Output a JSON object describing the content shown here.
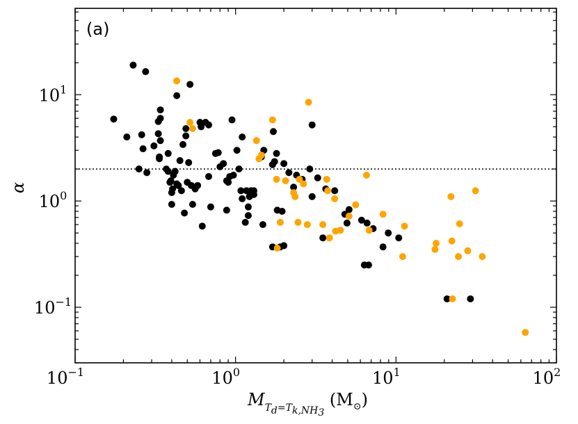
{
  "chart_data": {
    "type": "scatter",
    "title": "",
    "panel_label": "(a)",
    "xscale": "log",
    "yscale": "log",
    "xlim": [
      0.1,
      100
    ],
    "ylim": [
      0.03,
      65
    ],
    "x_ticks": [
      {
        "base": "10",
        "exp": "−1",
        "value": 0.1
      },
      {
        "base": "10",
        "exp": "0",
        "value": 1
      },
      {
        "base": "10",
        "exp": "1",
        "value": 10
      },
      {
        "base": "10",
        "exp": "2",
        "value": 100
      }
    ],
    "y_ticks": [
      {
        "base": "10",
        "exp": "−1",
        "value": 0.1
      },
      {
        "base": "10",
        "exp": "0",
        "value": 1
      },
      {
        "base": "10",
        "exp": "1",
        "value": 10
      }
    ],
    "xlabel": {
      "symbol": "M",
      "sub_lhs": "T",
      "sub_lhs_sub": "d",
      "sub_eq": "=",
      "sub_rhs": "T",
      "sub_rhs_sub": "k,NH",
      "sub_rhs_sub2": "3",
      "unit": "(M",
      "unit_sub": "⊙",
      "unit_close": ")"
    },
    "ylabel": "α",
    "reference_line": {
      "y": 2.0,
      "style": "dotted",
      "color": "#000000"
    },
    "series": [
      {
        "name": "black",
        "color": "#000000",
        "points": [
          [
            0.174,
            5.9
          ],
          [
            0.21,
            4.0
          ],
          [
            0.23,
            19.0
          ],
          [
            0.25,
            2.0
          ],
          [
            0.26,
            4.2
          ],
          [
            0.265,
            3.1
          ],
          [
            0.275,
            16.5
          ],
          [
            0.28,
            1.85
          ],
          [
            0.31,
            3.3
          ],
          [
            0.33,
            4.3
          ],
          [
            0.33,
            5.6
          ],
          [
            0.335,
            2.5
          ],
          [
            0.335,
            2.6
          ],
          [
            0.34,
            7.2
          ],
          [
            0.34,
            6.0
          ],
          [
            0.34,
            3.7
          ],
          [
            0.37,
            2.0
          ],
          [
            0.38,
            2.8
          ],
          [
            0.38,
            1.9
          ],
          [
            0.39,
            1.5
          ],
          [
            0.395,
            1.55
          ],
          [
            0.4,
            0.93
          ],
          [
            0.4,
            1.2
          ],
          [
            0.405,
            1.3
          ],
          [
            0.41,
            1.75
          ],
          [
            0.42,
            1.9
          ],
          [
            0.43,
            1.45
          ],
          [
            0.43,
            9.8
          ],
          [
            0.44,
            1.4
          ],
          [
            0.45,
            2.4
          ],
          [
            0.46,
            1.25
          ],
          [
            0.47,
            3.4
          ],
          [
            0.48,
            0.77
          ],
          [
            0.49,
            4.8
          ],
          [
            0.49,
            4.1
          ],
          [
            0.5,
            1.5
          ],
          [
            0.51,
            2.3
          ],
          [
            0.52,
            12.5
          ],
          [
            0.53,
            1.4
          ],
          [
            0.54,
            0.93
          ],
          [
            0.56,
            1.3
          ],
          [
            0.58,
            1.4
          ],
          [
            0.6,
            5.5
          ],
          [
            0.61,
            5.0
          ],
          [
            0.62,
            0.58
          ],
          [
            0.65,
            5.5
          ],
          [
            0.68,
            5.2
          ],
          [
            0.68,
            1.7
          ],
          [
            0.7,
            0.88
          ],
          [
            0.75,
            2.8
          ],
          [
            0.78,
            2.85
          ],
          [
            0.8,
            2.1
          ],
          [
            0.84,
            2.25
          ],
          [
            0.88,
            0.82
          ],
          [
            0.88,
            1.55
          ],
          [
            0.9,
            1.5
          ],
          [
            0.92,
            1.7
          ],
          [
            0.95,
            5.8
          ],
          [
            0.97,
            1.75
          ],
          [
            1.02,
            3.0
          ],
          [
            1.05,
            2.0
          ],
          [
            1.08,
            1.25
          ],
          [
            1.1,
            4.0
          ],
          [
            1.1,
            1.05
          ],
          [
            1.15,
            0.63
          ],
          [
            1.17,
            1.25
          ],
          [
            1.2,
            0.73
          ],
          [
            1.2,
            0.88
          ],
          [
            1.22,
            1.1
          ],
          [
            1.25,
            1.25
          ],
          [
            1.3,
            1.15
          ],
          [
            1.3,
            1.25
          ],
          [
            1.45,
            2.6
          ],
          [
            1.48,
            0.6
          ],
          [
            1.5,
            3.0
          ],
          [
            1.7,
            2.2
          ],
          [
            1.7,
            0.37
          ],
          [
            1.72,
            4.5
          ],
          [
            1.75,
            2.35
          ],
          [
            1.8,
            2.8
          ],
          [
            1.82,
            0.82
          ],
          [
            1.9,
            0.37
          ],
          [
            1.95,
            0.8
          ],
          [
            2.0,
            0.38
          ],
          [
            2.0,
            2.25
          ],
          [
            2.15,
            1.85
          ],
          [
            2.3,
            1.35
          ],
          [
            2.4,
            1.75
          ],
          [
            2.6,
            1.6
          ],
          [
            2.9,
            2.0
          ],
          [
            3.0,
            5.2
          ],
          [
            3.0,
            1.1
          ],
          [
            3.25,
            1.65
          ],
          [
            3.5,
            0.45
          ],
          [
            3.65,
            1.3
          ],
          [
            4.15,
            1.25
          ],
          [
            4.8,
            0.75
          ],
          [
            4.95,
            0.62
          ],
          [
            5.1,
            0.83
          ],
          [
            6.1,
            0.66
          ],
          [
            6.35,
            0.25
          ],
          [
            6.6,
            0.62
          ],
          [
            6.75,
            0.25
          ],
          [
            7.2,
            0.55
          ],
          [
            8.3,
            0.37
          ],
          [
            8.95,
            0.5
          ],
          [
            10.4,
            0.45
          ],
          [
            20.8,
            0.12
          ],
          [
            29.1,
            0.12
          ]
        ]
      },
      {
        "name": "orange",
        "color": "#ffa500",
        "points": [
          [
            0.43,
            13.5
          ],
          [
            0.52,
            5.5
          ],
          [
            0.54,
            4.8
          ],
          [
            1.35,
            3.7
          ],
          [
            1.4,
            2.5
          ],
          [
            1.45,
            2.7
          ],
          [
            1.7,
            5.8
          ],
          [
            1.8,
            1.6
          ],
          [
            1.82,
            0.36
          ],
          [
            1.9,
            0.63
          ],
          [
            2.05,
            1.55
          ],
          [
            2.3,
            1.2
          ],
          [
            2.35,
            1.1
          ],
          [
            2.45,
            0.63
          ],
          [
            2.5,
            1.6
          ],
          [
            2.65,
            1.45
          ],
          [
            2.8,
            0.6
          ],
          [
            2.85,
            8.5
          ],
          [
            3.5,
            0.6
          ],
          [
            3.7,
            1.6
          ],
          [
            3.75,
            1.25
          ],
          [
            3.85,
            0.45
          ],
          [
            4.15,
            1.05
          ],
          [
            4.2,
            0.52
          ],
          [
            4.5,
            0.53
          ],
          [
            5.1,
            0.72
          ],
          [
            5.6,
            0.92
          ],
          [
            6.55,
            1.75
          ],
          [
            6.8,
            0.53
          ],
          [
            8.3,
            0.75
          ],
          [
            11.0,
            0.3
          ],
          [
            11.3,
            0.58
          ],
          [
            17.5,
            0.35
          ],
          [
            17.8,
            0.4
          ],
          [
            22.0,
            1.1
          ],
          [
            22.3,
            0.42
          ],
          [
            22.5,
            0.12
          ],
          [
            24.5,
            0.3
          ],
          [
            24.9,
            0.61
          ],
          [
            28.0,
            0.34
          ],
          [
            31.3,
            1.25
          ],
          [
            34.5,
            0.3
          ],
          [
            64.0,
            0.058
          ]
        ]
      }
    ]
  }
}
